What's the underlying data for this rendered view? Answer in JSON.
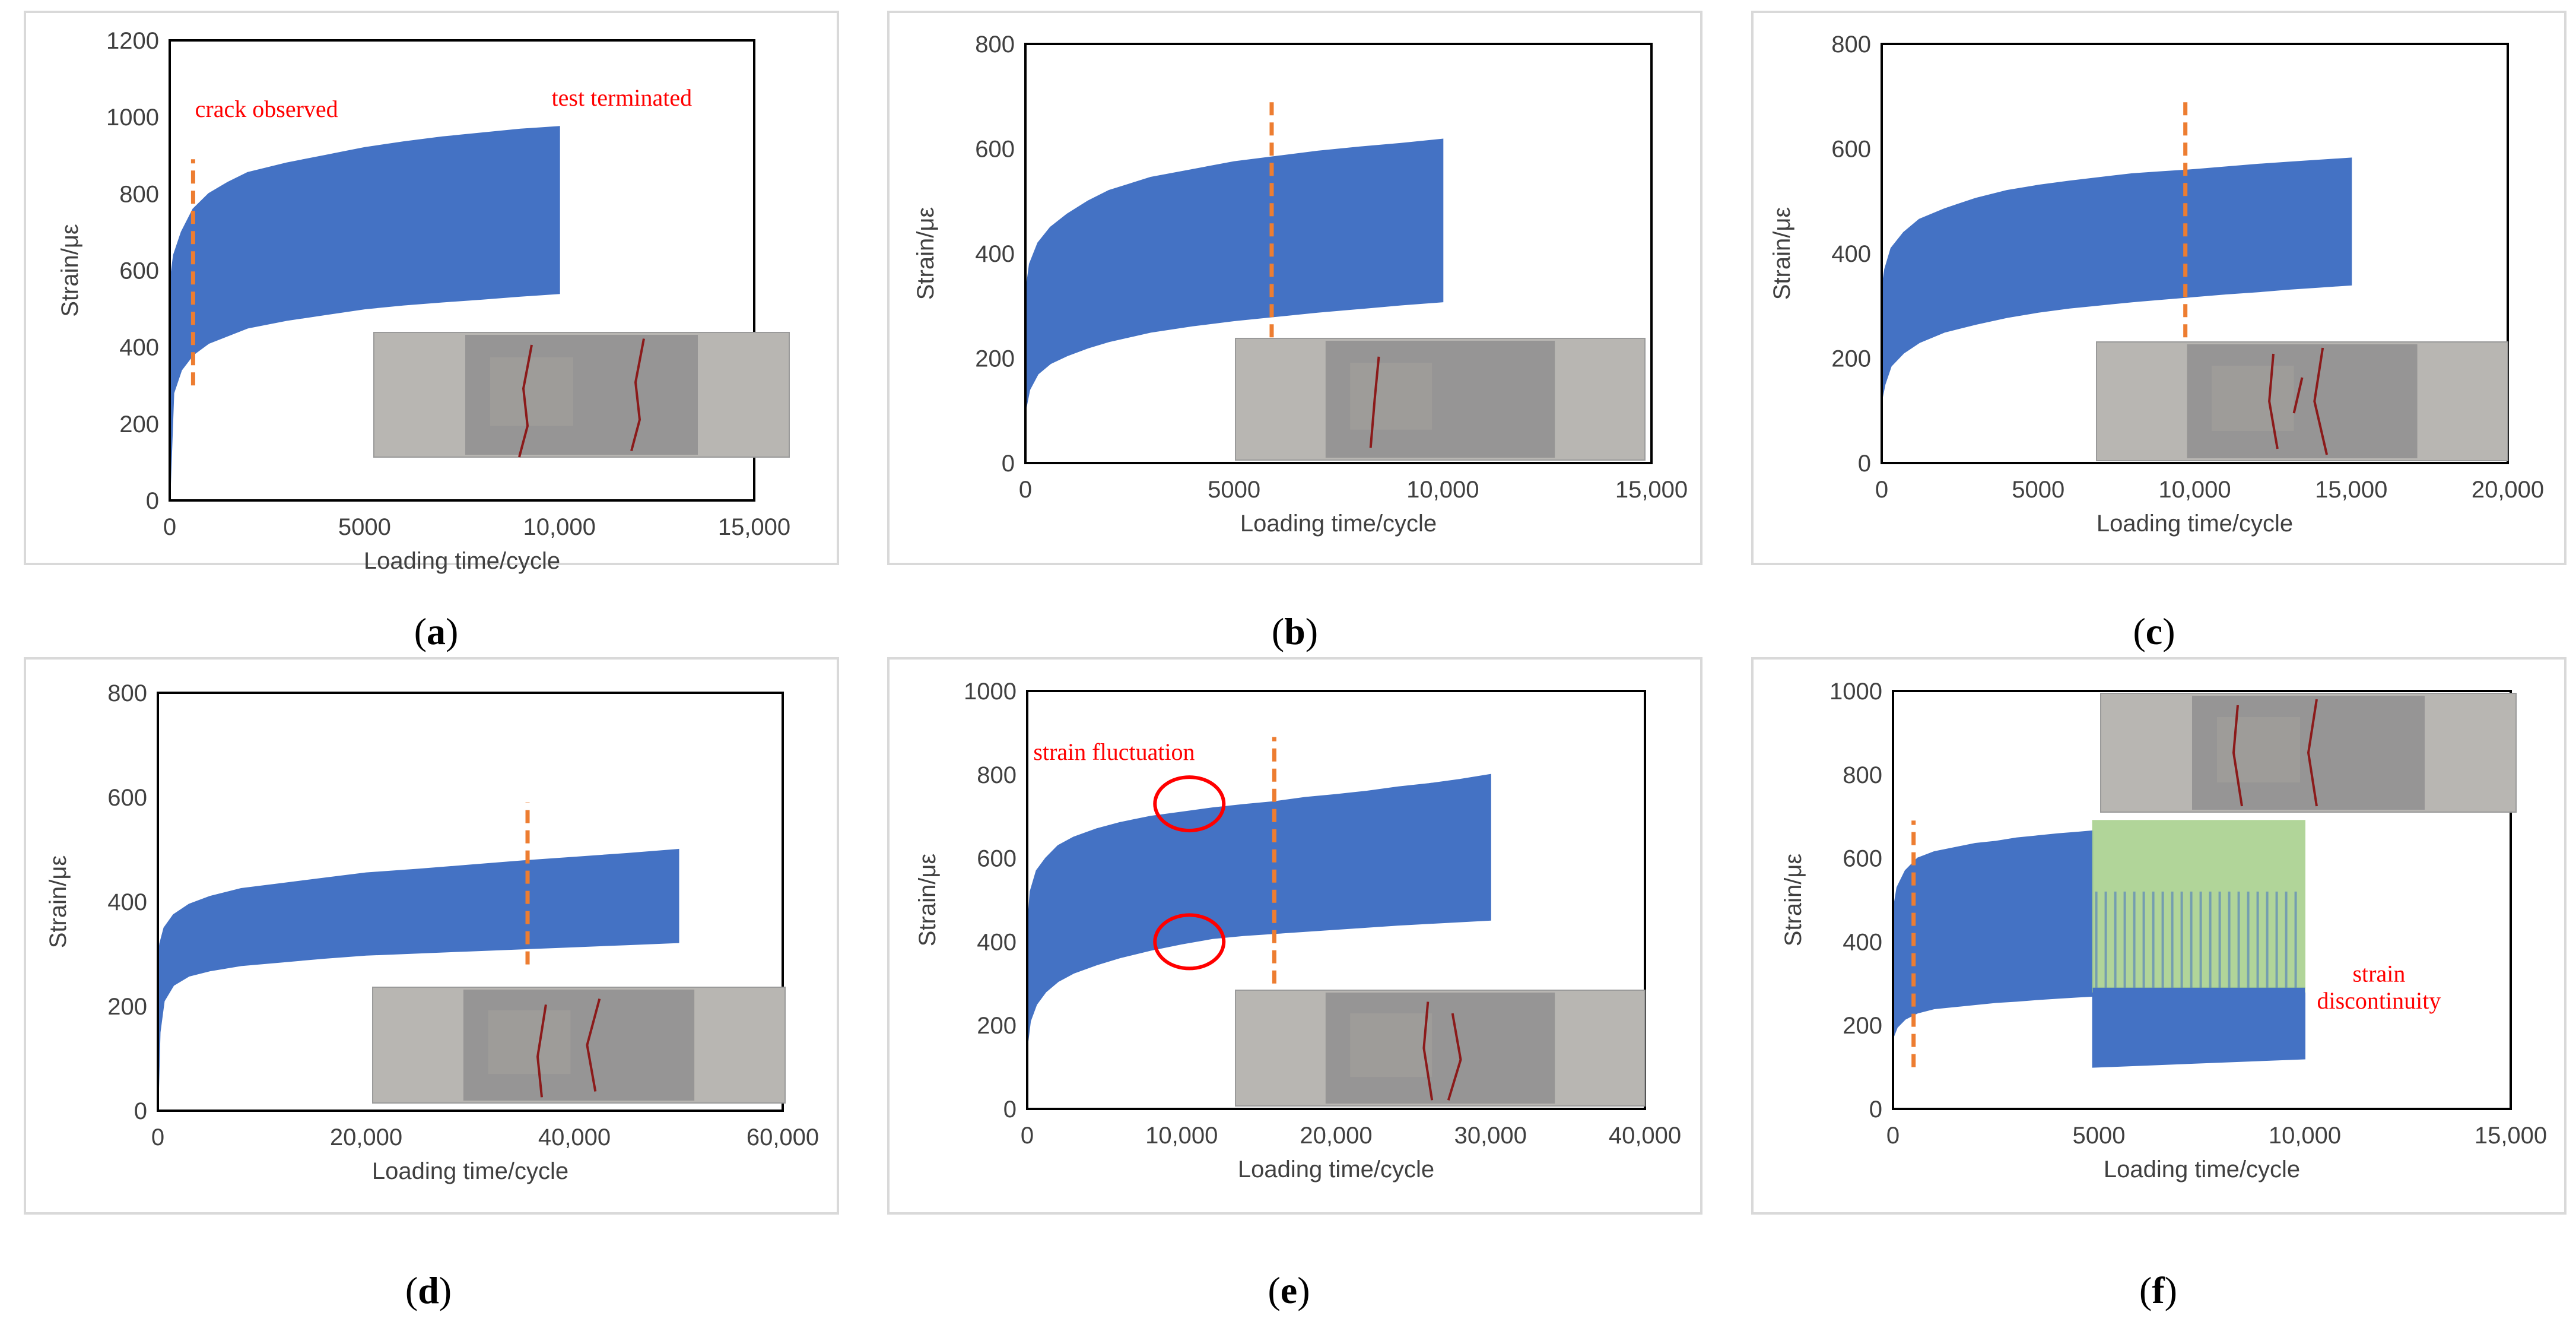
{
  "colors": {
    "envelope": "#4472C4",
    "marker": "#ED7D31",
    "annotation": "#FF0000",
    "overlay": "#A9D18E",
    "frame": "#D9D9D9",
    "photo_bg": "#8F8F8F",
    "crack": "#8B1A1A"
  },
  "chart_data": [
    {
      "panel": "(a)",
      "type": "area",
      "ylabel": "Strain/με",
      "xlabel": "Loading time/cycle",
      "xlim": [
        0,
        15000
      ],
      "ylim": [
        0,
        1200
      ],
      "xticks": [
        0,
        5000,
        10000,
        15000
      ],
      "xtick_labels": [
        "0",
        "5000",
        "10,000",
        "15,000"
      ],
      "yticks": [
        0,
        200,
        400,
        600,
        800,
        1000,
        1200
      ],
      "ytick_labels": [
        "0",
        "200",
        "400",
        "600",
        "800",
        "1000",
        "1200"
      ],
      "series": [
        {
          "x": [
            0,
            100,
            300,
            600,
            1000,
            1500,
            2000,
            3000,
            4000,
            5000,
            6000,
            7000,
            8000,
            9000,
            10000
          ],
          "max": [
            560,
            640,
            700,
            760,
            800,
            830,
            855,
            880,
            900,
            920,
            935,
            948,
            958,
            968,
            975
          ],
          "min": [
            0,
            280,
            340,
            380,
            410,
            430,
            450,
            470,
            485,
            500,
            510,
            518,
            525,
            533,
            540
          ]
        }
      ],
      "marker_x": 600,
      "marker_y": [
        300,
        890
      ],
      "annotations": [
        {
          "text": "crack observed",
          "x": 650,
          "y": 1000
        },
        {
          "text": "test terminated",
          "x": 9800,
          "y": 1030
        }
      ]
    },
    {
      "panel": "(b)",
      "type": "area",
      "ylabel": "Strain/με",
      "xlabel": "Loading time/cycle",
      "xlim": [
        0,
        15000
      ],
      "ylim": [
        0,
        800
      ],
      "xticks": [
        0,
        5000,
        10000,
        15000
      ],
      "xtick_labels": [
        "0",
        "5000",
        "10,000",
        "15,000"
      ],
      "yticks": [
        0,
        200,
        400,
        600,
        800
      ],
      "ytick_labels": [
        "0",
        "200",
        "400",
        "600",
        "800"
      ],
      "series": [
        {
          "x": [
            0,
            100,
            300,
            600,
            1000,
            1500,
            2000,
            3000,
            4000,
            5000,
            6000,
            7000,
            8000,
            9000,
            10000
          ],
          "max": [
            320,
            380,
            420,
            450,
            475,
            500,
            520,
            545,
            560,
            575,
            585,
            595,
            603,
            610,
            618
          ],
          "min": [
            100,
            140,
            170,
            190,
            205,
            220,
            232,
            250,
            262,
            272,
            280,
            288,
            295,
            302,
            308
          ]
        }
      ],
      "marker_x": 5900,
      "marker_y": [
        240,
        700
      ],
      "annotations": []
    },
    {
      "panel": "(c)",
      "type": "area",
      "ylabel": "Strain/με",
      "xlabel": "Loading time/cycle",
      "xlim": [
        0,
        20000
      ],
      "ylim": [
        0,
        800
      ],
      "xticks": [
        0,
        5000,
        10000,
        15000,
        20000
      ],
      "xtick_labels": [
        "0",
        "5000",
        "10,000",
        "15,000",
        "20,000"
      ],
      "yticks": [
        0,
        200,
        400,
        600,
        800
      ],
      "ytick_labels": [
        "0",
        "200",
        "400",
        "600",
        "800"
      ],
      "series": [
        {
          "x": [
            0,
            100,
            300,
            700,
            1200,
            2000,
            3000,
            4000,
            5000,
            6000,
            7000,
            8000,
            9000,
            10000,
            11000,
            12000,
            13000,
            14000,
            15000
          ],
          "max": [
            330,
            370,
            410,
            440,
            465,
            485,
            505,
            520,
            530,
            538,
            545,
            552,
            556,
            560,
            565,
            570,
            574,
            578,
            582
          ],
          "min": [
            120,
            150,
            185,
            210,
            230,
            250,
            265,
            278,
            288,
            296,
            302,
            308,
            313,
            318,
            323,
            327,
            332,
            336,
            340
          ]
        }
      ],
      "marker_x": 9700,
      "marker_y": [
        240,
        700
      ],
      "annotations": []
    },
    {
      "panel": "(d)",
      "type": "area",
      "ylabel": "Strain/με",
      "xlabel": "Loading time/cycle",
      "xlim": [
        0,
        60000
      ],
      "ylim": [
        0,
        800
      ],
      "xticks": [
        0,
        20000,
        40000,
        60000
      ],
      "xtick_labels": [
        "0",
        "20,000",
        "40,000",
        "60,000"
      ],
      "yticks": [
        0,
        200,
        400,
        600,
        800
      ],
      "ytick_labels": [
        "0",
        "200",
        "400",
        "600",
        "800"
      ],
      "series": [
        {
          "x": [
            0,
            200,
            600,
            1500,
            3000,
            5000,
            8000,
            12000,
            16000,
            20000,
            25000,
            30000,
            35000,
            40000,
            45000,
            50000
          ],
          "max": [
            290,
            320,
            350,
            375,
            395,
            410,
            425,
            435,
            445,
            455,
            462,
            470,
            478,
            485,
            492,
            500
          ],
          "min": [
            0,
            150,
            210,
            240,
            258,
            268,
            278,
            285,
            292,
            298,
            302,
            306,
            310,
            314,
            318,
            322
          ]
        }
      ],
      "marker_x": 35500,
      "marker_y": [
        280,
        590
      ],
      "annotations": []
    },
    {
      "panel": "(e)",
      "type": "area",
      "ylabel": "Strain/με",
      "xlabel": "Loading time/cycle",
      "xlim": [
        0,
        40000
      ],
      "ylim": [
        0,
        1000
      ],
      "xticks": [
        0,
        10000,
        20000,
        30000,
        40000
      ],
      "xtick_labels": [
        "0",
        "10,000",
        "20,000",
        "30,000",
        "40,000"
      ],
      "yticks": [
        0,
        200,
        400,
        600,
        800,
        1000
      ],
      "ytick_labels": [
        "0",
        "200",
        "400",
        "600",
        "800",
        "1000"
      ],
      "series": [
        {
          "x": [
            0,
            200,
            600,
            1200,
            2000,
            3000,
            4500,
            6000,
            8000,
            10000,
            12000,
            14000,
            16000,
            18000,
            20000,
            22000,
            24000,
            26000,
            28000,
            30000
          ],
          "max": [
            420,
            520,
            570,
            600,
            630,
            650,
            670,
            685,
            700,
            710,
            720,
            728,
            735,
            745,
            752,
            760,
            770,
            778,
            788,
            800
          ],
          "min": [
            150,
            210,
            250,
            280,
            305,
            325,
            345,
            362,
            380,
            395,
            408,
            415,
            420,
            425,
            430,
            435,
            440,
            444,
            448,
            452
          ]
        }
      ],
      "marker_x": 16000,
      "marker_y": [
        300,
        890
      ],
      "circles": [
        {
          "x": 10500,
          "y": 730
        },
        {
          "x": 10500,
          "y": 400
        }
      ],
      "annotations": [
        {
          "text": "strain fluctuation",
          "x": 400,
          "y": 835
        }
      ]
    },
    {
      "panel": "(f)",
      "type": "area",
      "ylabel": "Strain/με",
      "xlabel": "Loading time/cycle",
      "xlim": [
        0,
        15000
      ],
      "ylim": [
        0,
        1000
      ],
      "xticks": [
        0,
        5000,
        10000,
        15000
      ],
      "xtick_labels": [
        "0",
        "5000",
        "10,000",
        "15,000"
      ],
      "yticks": [
        0,
        200,
        400,
        600,
        800,
        1000
      ],
      "ytick_labels": [
        "0",
        "200",
        "400",
        "600",
        "800",
        "1000"
      ],
      "series": [
        {
          "name": "",
          "x": [
            0,
            100,
            300,
            600,
            1000,
            1500,
            2000,
            2500,
            3000,
            3500,
            4000,
            4500,
            4850
          ],
          "max": [
            470,
            530,
            570,
            600,
            615,
            625,
            635,
            640,
            648,
            653,
            658,
            662,
            665
          ],
          "min": [
            170,
            195,
            215,
            230,
            240,
            245,
            250,
            255,
            258,
            262,
            265,
            268,
            270
          ]
        },
        {
          "name": "",
          "x": [
            4850,
            10000
          ],
          "max": [
            290,
            290
          ],
          "min": [
            100,
            120
          ]
        },
        {
          "name": "",
          "x": [
            4850,
            10000
          ],
          "max": [
            690,
            690
          ],
          "min": [
            280,
            280
          ]
        }
      ],
      "marker_x": 500,
      "marker_y": [
        100,
        690
      ],
      "annotations": [
        {
          "text": "strain",
          "x": 11800,
          "y": 305
        },
        {
          "text": "discontinuity",
          "x": 11800,
          "y": 240
        }
      ]
    }
  ],
  "captions": [
    "(a)",
    "(b)",
    "(c)",
    "(d)",
    "(e)",
    "(f)"
  ]
}
